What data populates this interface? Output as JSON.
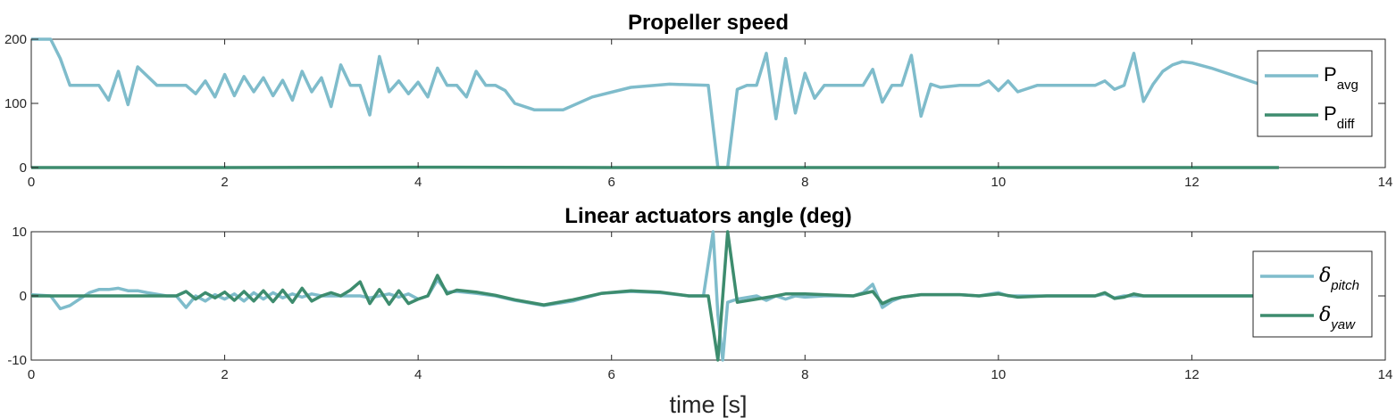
{
  "chart_data": [
    {
      "type": "line",
      "title": "Propeller speed",
      "xlim": [
        0,
        14
      ],
      "ylim": [
        0,
        200
      ],
      "xticks": [
        "0",
        "2",
        "4",
        "6",
        "8",
        "10",
        "12",
        "14"
      ],
      "yticks": [
        "0",
        "100",
        "200"
      ],
      "legend_placement": "right",
      "series": [
        {
          "name": "P",
          "subscript": "avg",
          "color": "#7fbccb",
          "x": [
            0,
            0.2,
            0.3,
            0.4,
            0.6,
            0.7,
            0.8,
            0.9,
            1.0,
            1.1,
            1.3,
            1.5,
            1.6,
            1.7,
            1.8,
            1.9,
            2.0,
            2.1,
            2.2,
            2.3,
            2.4,
            2.5,
            2.6,
            2.7,
            2.8,
            2.9,
            3.0,
            3.1,
            3.2,
            3.3,
            3.4,
            3.5,
            3.6,
            3.7,
            3.8,
            3.9,
            4.0,
            4.1,
            4.2,
            4.3,
            4.4,
            4.5,
            4.6,
            4.7,
            4.8,
            4.9,
            5.0,
            5.2,
            5.5,
            5.8,
            6.2,
            6.6,
            7.0,
            7.1,
            7.2,
            7.3,
            7.4,
            7.5,
            7.6,
            7.7,
            7.8,
            7.9,
            8.0,
            8.1,
            8.2,
            8.4,
            8.6,
            8.7,
            8.8,
            8.9,
            9.0,
            9.1,
            9.2,
            9.3,
            9.4,
            9.6,
            9.8,
            9.9,
            10.0,
            10.1,
            10.2,
            10.4,
            10.6,
            10.8,
            11.0,
            11.1,
            11.2,
            11.3,
            11.4,
            11.5,
            11.6,
            11.7,
            11.8,
            11.9,
            12.0,
            12.2,
            12.5,
            12.7
          ],
          "y": [
            200,
            200,
            170,
            128,
            128,
            128,
            105,
            150,
            98,
            157,
            128,
            128,
            128,
            115,
            135,
            110,
            145,
            112,
            142,
            118,
            140,
            112,
            136,
            105,
            150,
            118,
            140,
            95,
            160,
            128,
            128,
            82,
            173,
            118,
            135,
            115,
            133,
            110,
            155,
            128,
            128,
            110,
            150,
            128,
            128,
            120,
            100,
            90,
            90,
            110,
            125,
            130,
            128,
            0,
            0,
            122,
            128,
            128,
            178,
            76,
            170,
            85,
            147,
            108,
            128,
            128,
            128,
            153,
            102,
            128,
            128,
            175,
            80,
            130,
            125,
            128,
            128,
            135,
            120,
            135,
            118,
            128,
            128,
            128,
            128,
            135,
            122,
            128,
            178,
            103,
            130,
            150,
            160,
            165,
            163,
            155,
            140,
            130
          ]
        },
        {
          "name": "P",
          "subscript": "diff",
          "color": "#3d8c6e",
          "x": [
            0,
            2,
            4,
            6,
            7.1,
            7.2,
            8,
            10,
            12,
            12.9
          ],
          "y": [
            0,
            0,
            0.5,
            0,
            0,
            0,
            0,
            0,
            0,
            0
          ]
        }
      ]
    },
    {
      "type": "line",
      "title": "Linear actuators angle (deg)",
      "xlabel": "time [s]",
      "xlim": [
        0,
        14
      ],
      "ylim": [
        -10,
        10
      ],
      "xticks": [
        "0",
        "2",
        "4",
        "6",
        "8",
        "10",
        "12",
        "14"
      ],
      "yticks": [
        "10",
        "0",
        "-10"
      ],
      "legend_placement": "right",
      "series": [
        {
          "name": "δ",
          "subscript": "pitch",
          "color": "#7fbccb",
          "x": [
            0,
            0.2,
            0.3,
            0.4,
            0.5,
            0.6,
            0.7,
            0.8,
            0.9,
            1.0,
            1.1,
            1.2,
            1.4,
            1.5,
            1.6,
            1.7,
            1.8,
            1.9,
            2.0,
            2.1,
            2.2,
            2.3,
            2.4,
            2.5,
            2.6,
            2.7,
            2.8,
            2.9,
            3.0,
            3.2,
            3.4,
            3.5,
            3.6,
            3.7,
            3.8,
            3.9,
            4.0,
            4.1,
            4.2,
            4.3,
            4.4,
            4.6,
            4.8,
            5.0,
            5.3,
            5.6,
            5.9,
            6.2,
            6.5,
            6.8,
            6.95,
            7.0,
            7.05,
            7.1,
            7.15,
            7.2,
            7.3,
            7.5,
            7.6,
            7.7,
            7.8,
            7.9,
            8.0,
            8.2,
            8.5,
            8.6,
            8.7,
            8.8,
            8.9,
            9.0,
            9.2,
            9.4,
            9.6,
            9.8,
            10.0,
            10.1,
            10.2,
            10.5,
            11.0,
            11.1,
            11.2,
            11.3,
            11.5,
            12.0,
            12.5,
            12.8
          ],
          "y": [
            0.2,
            0,
            -2,
            -1.5,
            -0.5,
            0.5,
            1,
            1,
            1.2,
            0.8,
            0.8,
            0.5,
            0,
            0,
            -1.8,
            0,
            -0.8,
            0.2,
            -0.5,
            0.3,
            -0.8,
            0.5,
            -0.5,
            0.5,
            -0.3,
            0.3,
            -0.2,
            0.3,
            0,
            0,
            0,
            -0.3,
            0,
            0.3,
            -0.2,
            0.3,
            -0.5,
            0,
            2.5,
            0.6,
            0.7,
            0.4,
            0,
            -0.7,
            -1.5,
            -0.8,
            0.4,
            0.7,
            0.5,
            0,
            0,
            5,
            10,
            -3,
            -10,
            -1,
            -0.5,
            0,
            -0.7,
            0,
            -0.5,
            0,
            -0.2,
            0,
            0,
            0.5,
            1.8,
            -1.8,
            -0.8,
            -0.2,
            0.2,
            0.2,
            0.2,
            0,
            0.5,
            0,
            0,
            0,
            0,
            0.3,
            -0.3,
            0,
            0,
            0,
            0,
            0
          ]
        },
        {
          "name": "δ",
          "subscript": "yaw",
          "color": "#3d8c6e",
          "x": [
            0,
            0.5,
            1.0,
            1.5,
            1.6,
            1.7,
            1.8,
            1.9,
            2.0,
            2.1,
            2.2,
            2.3,
            2.4,
            2.5,
            2.6,
            2.7,
            2.8,
            2.9,
            3.0,
            3.1,
            3.2,
            3.3,
            3.4,
            3.5,
            3.6,
            3.7,
            3.8,
            3.9,
            4.0,
            4.1,
            4.2,
            4.3,
            4.4,
            4.6,
            4.8,
            5.0,
            5.3,
            5.6,
            5.9,
            6.2,
            6.5,
            6.8,
            7.0,
            7.1,
            7.2,
            7.3,
            7.5,
            7.7,
            7.8,
            8.0,
            8.5,
            8.7,
            8.8,
            8.9,
            9.0,
            9.2,
            9.4,
            9.6,
            9.8,
            10.0,
            10.2,
            10.5,
            11.0,
            11.1,
            11.2,
            11.3,
            11.4,
            11.5,
            12.0,
            12.5,
            12.9
          ],
          "y": [
            0,
            0,
            0,
            0,
            0.7,
            -0.5,
            0.5,
            -0.3,
            0.6,
            -0.7,
            0.7,
            -0.8,
            0.8,
            -0.9,
            0.9,
            -1,
            1.2,
            -0.8,
            0,
            0.5,
            0,
            0.9,
            2.2,
            -1.2,
            1,
            -1.3,
            0.8,
            -1.2,
            -0.5,
            0,
            3.2,
            0.3,
            0.9,
            0.6,
            0.1,
            -0.6,
            -1.4,
            -0.6,
            0.4,
            0.8,
            0.6,
            0,
            0,
            -10,
            10,
            -1,
            -0.5,
            0,
            0.3,
            0.3,
            0,
            0.7,
            -1.2,
            -0.5,
            -0.2,
            0.2,
            0.2,
            0.2,
            0,
            0.3,
            -0.2,
            0,
            0,
            0.5,
            -0.4,
            -0.2,
            0.3,
            0,
            0,
            0,
            0
          ]
        }
      ]
    }
  ]
}
